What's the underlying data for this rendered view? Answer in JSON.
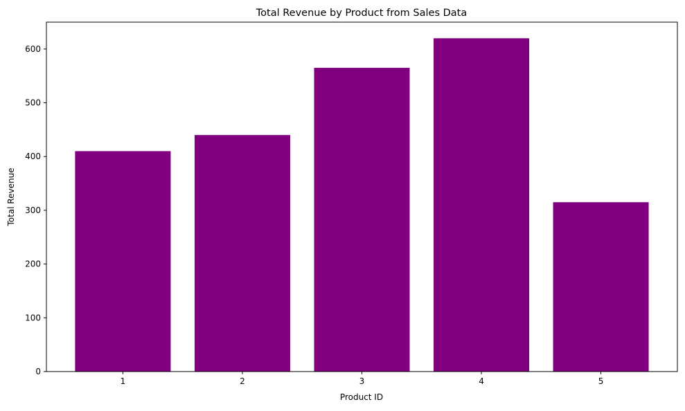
{
  "chart_data": {
    "type": "bar",
    "title": "Total Revenue by Product from Sales Data",
    "xlabel": "Product ID",
    "ylabel": "Total Revenue",
    "categories": [
      "1",
      "2",
      "3",
      "4",
      "5"
    ],
    "values": [
      410,
      440,
      565,
      620,
      315
    ],
    "ylim": [
      0,
      650
    ],
    "yticks": [
      0,
      100,
      200,
      300,
      400,
      500,
      600
    ],
    "bar_color": "#800080",
    "grid": false,
    "legend": "none"
  }
}
